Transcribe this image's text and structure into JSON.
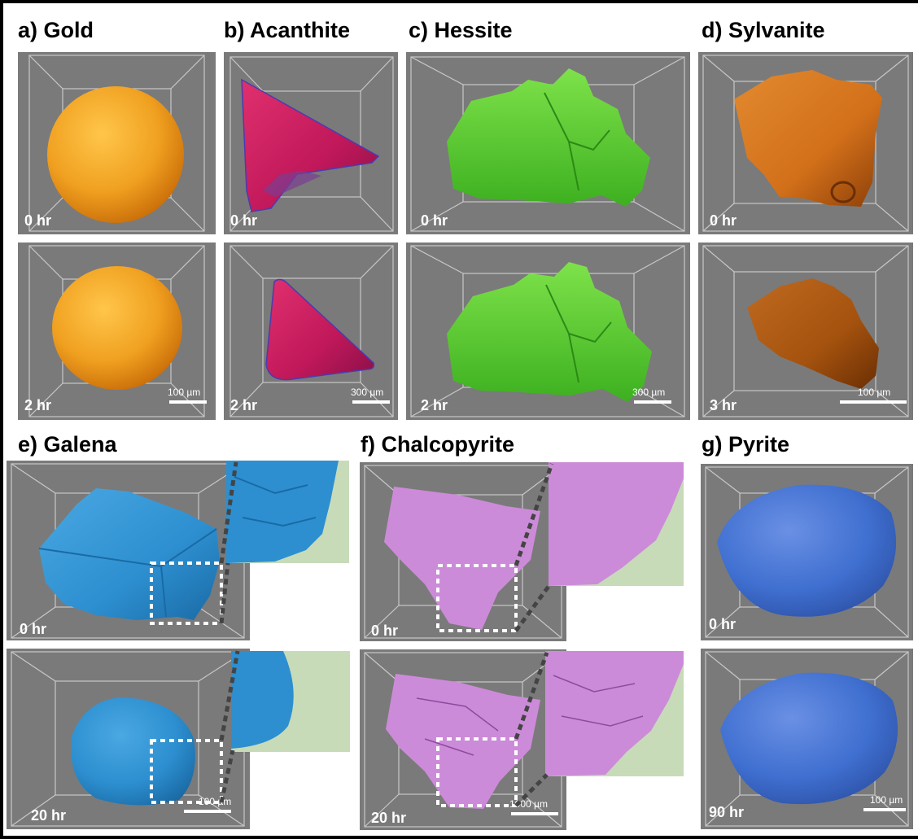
{
  "titles": {
    "a": "a) Gold",
    "b": "b) Acanthite",
    "c": "c) Hessite",
    "d": "d) Sylvanite",
    "e": "e) Galena",
    "f": "f) Chalcopyrite",
    "g": "g) Pyrite"
  },
  "times": {
    "a_top": "0 hr",
    "a_bot": "2 hr",
    "b_top": "0 hr",
    "b_bot": "2 hr",
    "c_top": "0 hr",
    "c_bot": "2 hr",
    "d_top": "0 hr",
    "d_bot": "3 hr",
    "e_top": "0 hr",
    "e_bot": "20 hr",
    "f_top": "0 hr",
    "f_bot": "20 hr",
    "g_top": "0 hr",
    "g_bot": "90 hr"
  },
  "scale_bars": {
    "a": "100 µm",
    "b": "300 µm",
    "c": "300 µm",
    "d": "100 µm",
    "e": "100 µm",
    "f": "1000 µm",
    "g": "100 µm"
  },
  "colors": {
    "gold": "#f0a020",
    "acanthite": "#c0185a",
    "hessite": "#5cd22e",
    "sylvanite": "#d2701a",
    "galena": "#2d8fd0",
    "chalcopyrite": "#cc8bd8",
    "pyrite": "#3f6fd0",
    "panel_bg": "#7a7a7a",
    "inset_bg": "#c7dbb9"
  }
}
